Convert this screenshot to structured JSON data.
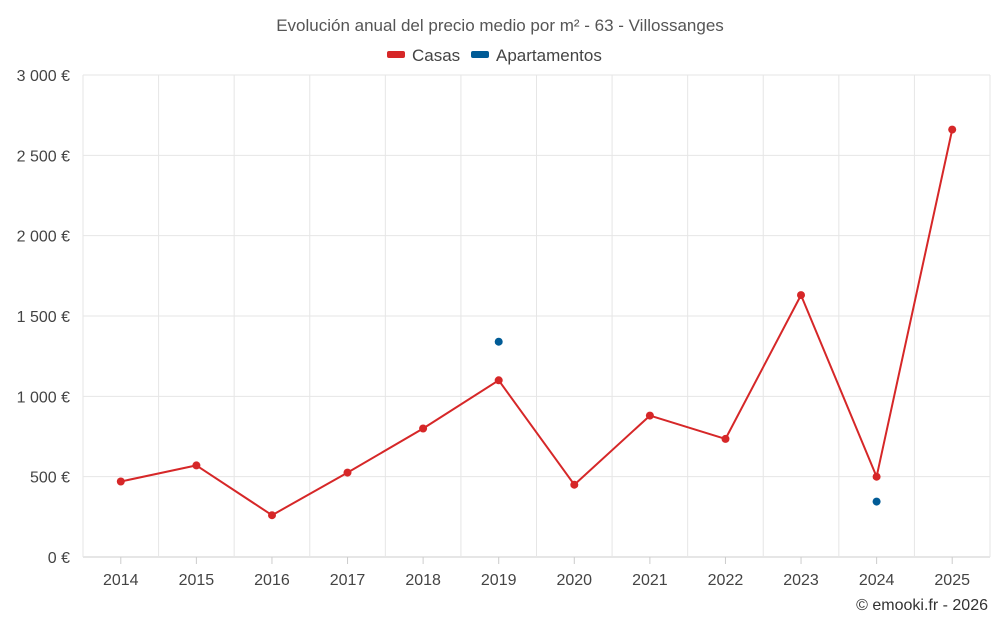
{
  "chart_data": {
    "type": "line",
    "title": "Evolución anual del precio medio por m² - 63 - Villossanges",
    "categories": [
      "2014",
      "2015",
      "2016",
      "2017",
      "2018",
      "2019",
      "2020",
      "2021",
      "2022",
      "2023",
      "2024",
      "2025"
    ],
    "series": [
      {
        "name": "Casas",
        "color": "#d62728",
        "values": [
          470,
          570,
          260,
          525,
          800,
          1100,
          450,
          880,
          735,
          1630,
          500,
          2660
        ]
      },
      {
        "name": "Apartamentos",
        "color": "#005b96",
        "values": [
          null,
          null,
          null,
          null,
          null,
          1340,
          null,
          null,
          null,
          null,
          345,
          null
        ]
      }
    ],
    "ylim": [
      0,
      3000
    ],
    "yticks": [
      0,
      500,
      1000,
      1500,
      2000,
      2500,
      3000
    ],
    "ytick_labels": [
      "0 €",
      "500 €",
      "1 000 €",
      "1 500 €",
      "2 000 €",
      "2 500 €",
      "3 000 €"
    ],
    "grid": true,
    "legend_position": "top-center"
  },
  "credit": "© emooki.fr - 2026"
}
